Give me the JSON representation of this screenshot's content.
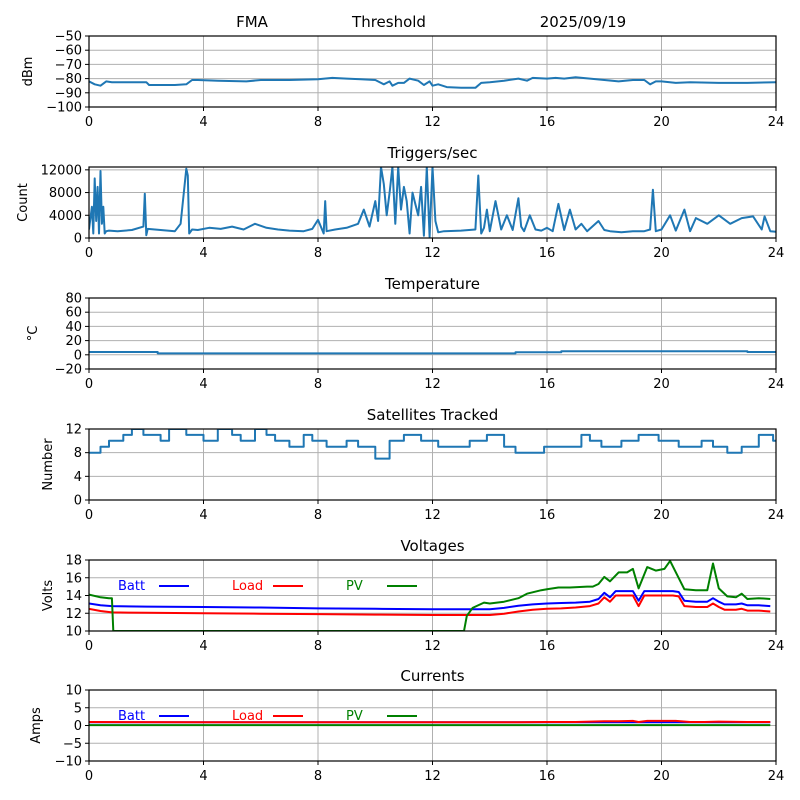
{
  "header": {
    "station": "FMA",
    "mode": "Threshold",
    "date": "2025/09/19"
  },
  "chart_data": [
    {
      "type": "line",
      "id": "signal",
      "title": "",
      "ylabel": "dBm",
      "xlabel": "",
      "xlim": [
        0,
        24
      ],
      "ylim": [
        -100,
        -50
      ],
      "xticks": [
        0,
        4,
        8,
        12,
        16,
        20,
        24
      ],
      "yticks": [
        -100,
        -90,
        -80,
        -70,
        -60,
        -50
      ],
      "ytick_labels": [
        "−100",
        "−90",
        "−80",
        "−70",
        "−60",
        "−50"
      ],
      "grid": true,
      "series": [
        {
          "name": "signal",
          "color": "#1f77b4",
          "x": [
            0,
            0.2,
            0.4,
            0.6,
            0.8,
            1.5,
            2.0,
            2.1,
            2.5,
            3.0,
            3.4,
            3.6,
            3.8,
            4.5,
            5.5,
            6.0,
            7.0,
            8.0,
            8.5,
            9.0,
            9.5,
            10.0,
            10.3,
            10.5,
            10.6,
            10.8,
            11.0,
            11.2,
            11.5,
            11.7,
            11.9,
            12.0,
            12.2,
            12.5,
            13.0,
            13.5,
            13.7,
            14.0,
            14.5,
            15.0,
            15.3,
            15.5,
            16.0,
            16.3,
            16.6,
            17.0,
            17.5,
            18.0,
            18.5,
            19.0,
            19.4,
            19.6,
            19.8,
            20.0,
            20.5,
            21.0,
            22.0,
            22.5,
            23.0,
            24.0
          ],
          "y": [
            -82,
            -84,
            -85,
            -82,
            -82.5,
            -82.5,
            -82.5,
            -84.5,
            -84.5,
            -84.5,
            -84,
            -81,
            -81,
            -81.5,
            -82,
            -81,
            -81,
            -80.5,
            -79.5,
            -80,
            -80.5,
            -81,
            -84,
            -82,
            -85,
            -83,
            -83,
            -80,
            -81.5,
            -84.5,
            -82,
            -85,
            -84,
            -86,
            -86.5,
            -86.5,
            -83,
            -82.5,
            -81.5,
            -80,
            -81.5,
            -79.5,
            -80,
            -79.5,
            -80,
            -79,
            -80,
            -81,
            -82,
            -81,
            -81,
            -84,
            -82,
            -82,
            -83,
            -82.5,
            -83,
            -83,
            -83,
            -82.5
          ]
        }
      ]
    },
    {
      "type": "line",
      "id": "triggers",
      "title": "Triggers/sec",
      "ylabel": "Count",
      "xlabel": "",
      "xlim": [
        0,
        24
      ],
      "ylim": [
        0,
        12500
      ],
      "xticks": [
        0,
        4,
        8,
        12,
        16,
        20,
        24
      ],
      "yticks": [
        0,
        4000,
        8000,
        12000
      ],
      "ytick_labels": [
        "0",
        "4000",
        "8000",
        "12000"
      ],
      "grid": true,
      "series": [
        {
          "name": "triggers",
          "color": "#1f77b4",
          "x": [
            0,
            0.1,
            0.15,
            0.2,
            0.25,
            0.3,
            0.35,
            0.4,
            0.45,
            0.5,
            0.55,
            0.6,
            0.7,
            1.0,
            1.5,
            1.9,
            1.95,
            2.0,
            2.05,
            2.5,
            3.0,
            3.2,
            3.4,
            3.45,
            3.5,
            3.6,
            3.8,
            4.2,
            4.6,
            5.0,
            5.4,
            5.8,
            6.2,
            6.6,
            7.0,
            7.5,
            7.8,
            8.0,
            8.2,
            8.25,
            8.3,
            8.6,
            9.0,
            9.4,
            9.6,
            9.8,
            10.0,
            10.1,
            10.2,
            10.3,
            10.4,
            10.5,
            10.6,
            10.7,
            10.8,
            10.9,
            11.0,
            11.1,
            11.2,
            11.3,
            11.4,
            11.5,
            11.6,
            11.7,
            11.8,
            11.9,
            12.0,
            12.1,
            12.2,
            12.4,
            13.0,
            13.5,
            13.6,
            13.7,
            13.8,
            13.9,
            14.0,
            14.2,
            14.4,
            14.6,
            14.8,
            15.0,
            15.1,
            15.2,
            15.4,
            15.6,
            15.8,
            16.0,
            16.2,
            16.4,
            16.6,
            16.8,
            17.0,
            17.2,
            17.4,
            17.8,
            18.0,
            18.2,
            18.6,
            19.0,
            19.4,
            19.6,
            19.7,
            19.8,
            20.0,
            20.3,
            20.5,
            20.8,
            21.0,
            21.2,
            21.6,
            22.0,
            22.4,
            22.8,
            23.2,
            23.5,
            23.6,
            23.8,
            24.0
          ],
          "y": [
            1500,
            5500,
            800,
            10500,
            3000,
            9000,
            800,
            11800,
            2500,
            5500,
            800,
            1200,
            1300,
            1200,
            1400,
            2000,
            7800,
            500,
            1600,
            1400,
            1200,
            2500,
            12200,
            11000,
            800,
            1500,
            1400,
            1800,
            1600,
            2000,
            1500,
            2500,
            1800,
            1500,
            1300,
            1200,
            1600,
            3200,
            800,
            6500,
            1200,
            1500,
            1800,
            2500,
            5000,
            2000,
            6500,
            3000,
            12500,
            9500,
            4000,
            8000,
            12500,
            2500,
            12500,
            5000,
            9000,
            6500,
            800,
            8000,
            6000,
            4000,
            9000,
            400,
            12500,
            200,
            12500,
            3000,
            1000,
            1200,
            1300,
            1500,
            11000,
            800,
            1800,
            5000,
            1200,
            6500,
            1500,
            4000,
            1400,
            7000,
            2000,
            1200,
            4000,
            1500,
            1300,
            1800,
            1200,
            6000,
            1400,
            5000,
            1500,
            2500,
            1200,
            3000,
            1400,
            1200,
            1000,
            1200,
            1200,
            1500,
            8500,
            1200,
            1500,
            4000,
            1300,
            5000,
            1200,
            3500,
            2500,
            4000,
            2500,
            3500,
            3800,
            1500,
            3800,
            1200,
            1100
          ]
        }
      ]
    },
    {
      "type": "line",
      "id": "temperature",
      "title": "Temperature",
      "ylabel": "°C",
      "xlabel": "",
      "xlim": [
        0,
        24
      ],
      "ylim": [
        -20,
        80
      ],
      "xticks": [
        0,
        4,
        8,
        12,
        16,
        20,
        24
      ],
      "yticks": [
        -20,
        0,
        20,
        40,
        60,
        80
      ],
      "ytick_labels": [
        "−20",
        "0",
        "20",
        "40",
        "60",
        "80"
      ],
      "grid": true,
      "series": [
        {
          "name": "temperature",
          "color": "#1f77b4",
          "x": [
            0,
            2.4,
            2.4,
            14.9,
            14.9,
            16.5,
            16.5,
            23.0,
            23.0,
            24.0
          ],
          "y": [
            4,
            4,
            2,
            2,
            3.5,
            3.5,
            5,
            5,
            4,
            4
          ]
        }
      ]
    },
    {
      "type": "line",
      "id": "satellites",
      "title": "Satellites Tracked",
      "ylabel": "Number",
      "xlabel": "",
      "xlim": [
        0,
        24
      ],
      "ylim": [
        0,
        12
      ],
      "xticks": [
        0,
        4,
        8,
        12,
        16,
        20,
        24
      ],
      "yticks": [
        0,
        4,
        8,
        12
      ],
      "ytick_labels": [
        "0",
        "4",
        "8",
        "12"
      ],
      "grid": true,
      "series": [
        {
          "name": "satellites",
          "color": "#1f77b4",
          "x": [
            0,
            0.4,
            0.4,
            0.7,
            0.7,
            1.2,
            1.2,
            1.5,
            1.5,
            1.9,
            1.9,
            2.5,
            2.5,
            2.8,
            2.8,
            3.4,
            3.4,
            4.0,
            4.0,
            4.5,
            4.5,
            5.0,
            5.0,
            5.3,
            5.3,
            5.8,
            5.8,
            6.2,
            6.2,
            6.5,
            6.5,
            7.0,
            7.0,
            7.5,
            7.5,
            7.8,
            7.8,
            8.3,
            8.3,
            9.0,
            9.0,
            9.4,
            9.4,
            10.0,
            10.0,
            10.5,
            10.5,
            11.0,
            11.0,
            11.6,
            11.6,
            12.2,
            12.2,
            13.3,
            13.3,
            13.9,
            13.9,
            14.5,
            14.5,
            14.9,
            14.9,
            15.9,
            15.9,
            17.2,
            17.2,
            17.5,
            17.5,
            17.9,
            17.9,
            18.6,
            18.6,
            19.2,
            19.2,
            19.9,
            19.9,
            20.6,
            20.6,
            21.4,
            21.4,
            21.8,
            21.8,
            22.3,
            22.3,
            22.8,
            22.8,
            23.4,
            23.4,
            23.9,
            23.9,
            24.0
          ],
          "y": [
            8,
            8,
            9,
            9,
            10,
            10,
            11,
            11,
            12,
            12,
            11,
            11,
            10,
            10,
            12,
            12,
            11,
            11,
            10,
            10,
            12,
            12,
            11,
            11,
            10,
            10,
            12,
            12,
            11,
            11,
            10,
            10,
            9,
            9,
            11,
            11,
            10,
            10,
            9,
            9,
            10,
            10,
            9,
            9,
            7,
            7,
            10,
            10,
            11,
            11,
            10,
            10,
            9,
            9,
            10,
            10,
            11,
            11,
            9,
            9,
            8,
            8,
            9,
            9,
            11,
            11,
            10,
            10,
            9,
            9,
            10,
            10,
            11,
            11,
            10,
            10,
            9,
            9,
            10,
            10,
            9,
            9,
            8,
            8,
            9,
            9,
            11,
            11,
            10,
            10
          ]
        }
      ]
    },
    {
      "type": "line",
      "id": "voltages",
      "title": "Voltages",
      "ylabel": "Volts",
      "xlabel": "",
      "xlim": [
        0,
        24
      ],
      "ylim": [
        10,
        18
      ],
      "xticks": [
        0,
        4,
        8,
        12,
        16,
        20,
        24
      ],
      "yticks": [
        10,
        12,
        14,
        16,
        18
      ],
      "ytick_labels": [
        "10",
        "12",
        "14",
        "16",
        "18"
      ],
      "grid": true,
      "legend": {
        "placement": "top-left",
        "entries": [
          "Batt",
          "Load",
          "PV"
        ]
      },
      "series": [
        {
          "name": "Batt",
          "color": "#0000ff",
          "x": [
            0,
            0.4,
            0.8,
            2,
            4,
            6,
            8,
            10,
            12,
            13,
            14,
            14.5,
            15,
            15.5,
            16,
            16.5,
            17,
            17.5,
            17.8,
            18.0,
            18.2,
            18.4,
            18.6,
            19.0,
            19.2,
            19.4,
            20.0,
            20.4,
            20.6,
            20.8,
            21.2,
            21.6,
            21.8,
            22.0,
            22.2,
            22.6,
            22.8,
            23.0,
            23.4,
            23.8
          ],
          "y": [
            13.1,
            12.9,
            12.8,
            12.75,
            12.7,
            12.65,
            12.55,
            12.5,
            12.45,
            12.45,
            12.45,
            12.6,
            12.85,
            13.0,
            13.1,
            13.15,
            13.2,
            13.3,
            13.6,
            14.3,
            13.8,
            14.5,
            14.5,
            14.5,
            13.4,
            14.5,
            14.5,
            14.5,
            14.4,
            13.4,
            13.3,
            13.3,
            13.7,
            13.3,
            13.0,
            13.0,
            13.1,
            12.9,
            12.9,
            12.8
          ]
        },
        {
          "name": "Load",
          "color": "#ff0000",
          "x": [
            0,
            0.4,
            0.8,
            2,
            4,
            6,
            8,
            10,
            12,
            13,
            14,
            14.5,
            15,
            15.5,
            16,
            16.5,
            17,
            17.5,
            17.8,
            18.0,
            18.2,
            18.4,
            18.6,
            19.0,
            19.2,
            19.4,
            20.0,
            20.4,
            20.6,
            20.8,
            21.2,
            21.6,
            21.8,
            22.0,
            22.2,
            22.6,
            22.8,
            23.0,
            23.4,
            23.8
          ],
          "y": [
            12.5,
            12.25,
            12.1,
            12.05,
            12.0,
            11.95,
            11.9,
            11.85,
            11.8,
            11.8,
            11.8,
            11.95,
            12.2,
            12.4,
            12.5,
            12.55,
            12.65,
            12.8,
            13.1,
            13.8,
            13.3,
            14.0,
            14.0,
            14.0,
            12.8,
            14.0,
            14.0,
            14.0,
            13.9,
            12.8,
            12.7,
            12.7,
            13.1,
            12.7,
            12.4,
            12.4,
            12.5,
            12.3,
            12.3,
            12.2
          ]
        },
        {
          "name": "PV",
          "color": "#008000",
          "x": [
            0,
            0.4,
            0.7,
            0.8,
            0.85,
            13.1,
            13.2,
            13.4,
            13.8,
            14.0,
            14.5,
            15.0,
            15.3,
            15.8,
            16.0,
            16.4,
            16.8,
            17.4,
            17.6,
            17.8,
            18.0,
            18.2,
            18.5,
            18.8,
            19.0,
            19.2,
            19.5,
            19.8,
            20.1,
            20.3,
            20.8,
            21.2,
            21.6,
            21.8,
            22.0,
            22.3,
            22.6,
            22.8,
            23.0,
            23.4,
            23.8
          ],
          "y": [
            14.1,
            13.8,
            13.7,
            13.7,
            10.0,
            10.0,
            11.7,
            12.6,
            13.2,
            13.1,
            13.3,
            13.7,
            14.2,
            14.6,
            14.7,
            14.9,
            14.9,
            15.0,
            15.0,
            15.3,
            16.1,
            15.6,
            16.6,
            16.6,
            17.0,
            14.8,
            17.2,
            16.8,
            17.0,
            17.9,
            14.7,
            14.6,
            14.6,
            17.6,
            14.8,
            13.9,
            13.8,
            14.2,
            13.6,
            13.7,
            13.6
          ]
        }
      ]
    },
    {
      "type": "line",
      "id": "currents",
      "title": "Currents",
      "ylabel": "Amps",
      "xlabel": "",
      "xlim": [
        0,
        24
      ],
      "ylim": [
        -10,
        10
      ],
      "xticks": [
        0,
        4,
        8,
        12,
        16,
        20,
        24
      ],
      "yticks": [
        -10,
        -5,
        0,
        5,
        10
      ],
      "ytick_labels": [
        "−10",
        "−5",
        "0",
        "5",
        "10"
      ],
      "grid": true,
      "legend": {
        "placement": "top-left",
        "entries": [
          "Batt",
          "Load",
          "PV"
        ]
      },
      "series": [
        {
          "name": "Batt",
          "color": "#0000ff",
          "x": [
            0,
            23.8
          ],
          "y": [
            0.9,
            0.9
          ]
        },
        {
          "name": "Load",
          "color": "#ff0000",
          "x": [
            0,
            4,
            8,
            12,
            15,
            16,
            17,
            18,
            18.5,
            19.0,
            19.2,
            19.5,
            20.0,
            20.5,
            21.0,
            21.5,
            22.0,
            23.0,
            23.8
          ],
          "y": [
            1.0,
            0.9,
            0.9,
            0.9,
            0.9,
            1.0,
            1.0,
            1.2,
            1.2,
            1.3,
            1.0,
            1.3,
            1.3,
            1.3,
            1.0,
            1.0,
            1.1,
            1.0,
            1.0
          ]
        },
        {
          "name": "PV",
          "color": "#008000",
          "x": [
            0,
            23.8
          ],
          "y": [
            0.1,
            0.1
          ]
        }
      ]
    }
  ]
}
